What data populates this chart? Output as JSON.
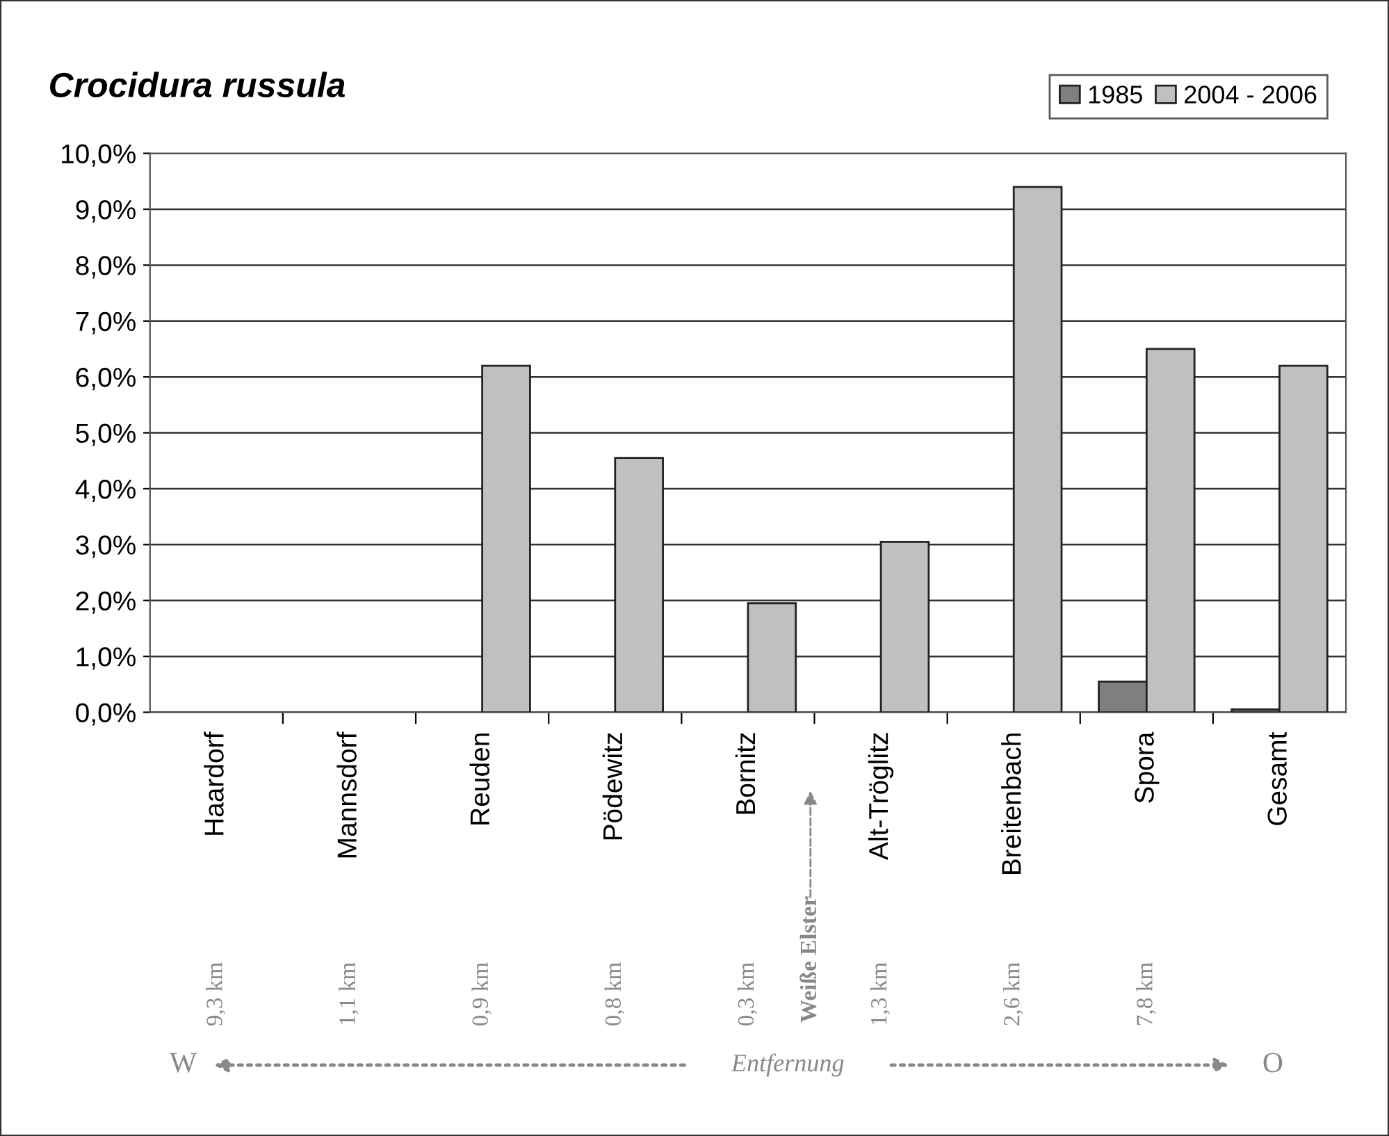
{
  "chart_data": {
    "type": "bar",
    "title": "Crocidura russula",
    "categories": [
      "Haardorf",
      "Mannsdorf",
      "Reuden",
      "Pödewitz",
      "Bornitz",
      "Alt-Tröglitz",
      "Breitenbach",
      "Spora",
      "Gesamt"
    ],
    "series": [
      {
        "name": "1985",
        "color": "#7f7f7f",
        "values": [
          0,
          0,
          0,
          0,
          0,
          0,
          0,
          0.55,
          0.05
        ]
      },
      {
        "name": "2004 - 2006",
        "color": "#c0c0c0",
        "values": [
          0,
          0,
          6.2,
          4.55,
          1.95,
          3.05,
          9.4,
          6.5,
          6.2
        ]
      }
    ],
    "ylim": [
      0,
      10
    ],
    "yticks": [
      {
        "value": 0,
        "label": "0,0%"
      },
      {
        "value": 1,
        "label": "1,0%"
      },
      {
        "value": 2,
        "label": "2,0%"
      },
      {
        "value": 3,
        "label": "3,0%"
      },
      {
        "value": 4,
        "label": "4,0%"
      },
      {
        "value": 5,
        "label": "5,0%"
      },
      {
        "value": 6,
        "label": "6,0%"
      },
      {
        "value": 7,
        "label": "7,0%"
      },
      {
        "value": 8,
        "label": "8,0%"
      },
      {
        "value": 9,
        "label": "9,0%"
      },
      {
        "value": 10,
        "label": "10,0%"
      }
    ],
    "grid": "y",
    "legend": "top right",
    "annotations": [
      "9,3 km",
      "1,1 km",
      "0,9 km",
      "0,8 km",
      "0,3 km",
      "1,3 km",
      "2,6 km",
      "7,8 km",
      "Weiße Elster",
      "W",
      "Entfernung",
      "O"
    ]
  }
}
